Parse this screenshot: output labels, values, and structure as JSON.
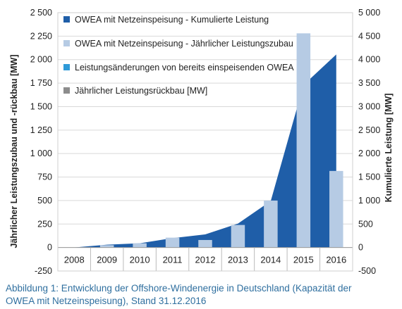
{
  "chart_data": {
    "type": "bar",
    "categories": [
      "2008",
      "2009",
      "2010",
      "2011",
      "2012",
      "2013",
      "2014",
      "2015",
      "2016"
    ],
    "ylabel_left": "Jährlicher Leistungszubau und -rückbau [MW]",
    "ylabel_right": "Kumulierte Leistung [MW]",
    "ylim_left": [
      -250,
      2500
    ],
    "ylim_right": [
      -500,
      5000
    ],
    "yticks_left": [
      "2 500",
      "2 250",
      "2 000",
      "1 750",
      "1 500",
      "1 250",
      "1 000",
      "750",
      "500",
      "250",
      "0",
      "-250"
    ],
    "yticks_right": [
      "5 000",
      "4 500",
      "4 000",
      "3 500",
      "3 000",
      "2 500",
      "2 000",
      "1 500",
      "1 000",
      "500",
      "0",
      "-500"
    ],
    "grid": true,
    "legend_position": "top-left",
    "series": [
      {
        "name": "OWEA mit Netzeinspeisung - Kumulierte Leistung",
        "type": "area",
        "axis": "right",
        "color": "#1f5ea8",
        "values": [
          0,
          60,
          90,
          200,
          280,
          510,
          990,
          3460,
          4110
        ]
      },
      {
        "name": "OWEA mit Netzeinspeisung - Jährlicher Leistungszubau",
        "type": "bar",
        "axis": "left",
        "color": "#b6cbe4",
        "values": [
          0,
          25,
          45,
          105,
          80,
          240,
          500,
          2280,
          815
        ]
      },
      {
        "name": "Leistungsänderungen von bereits einspeisenden OWEA",
        "type": "bar",
        "axis": "left",
        "color": "#2e9ad8",
        "values": [
          0,
          0,
          0,
          0,
          0,
          0,
          0,
          0,
          0
        ]
      },
      {
        "name": "Jährlicher Leistungsrückbau [MW]",
        "type": "bar",
        "axis": "left",
        "color": "#8c8c8c",
        "values": [
          0,
          0,
          0,
          0,
          0,
          0,
          0,
          0,
          0
        ]
      }
    ]
  },
  "caption": {
    "line1": "Abbildung 1: Entwicklung der Offshore-Windenergie in Deutschland (Kapazität der",
    "line2": "OWEA mit Netzeinspeisung), Stand 31.12.2016"
  }
}
